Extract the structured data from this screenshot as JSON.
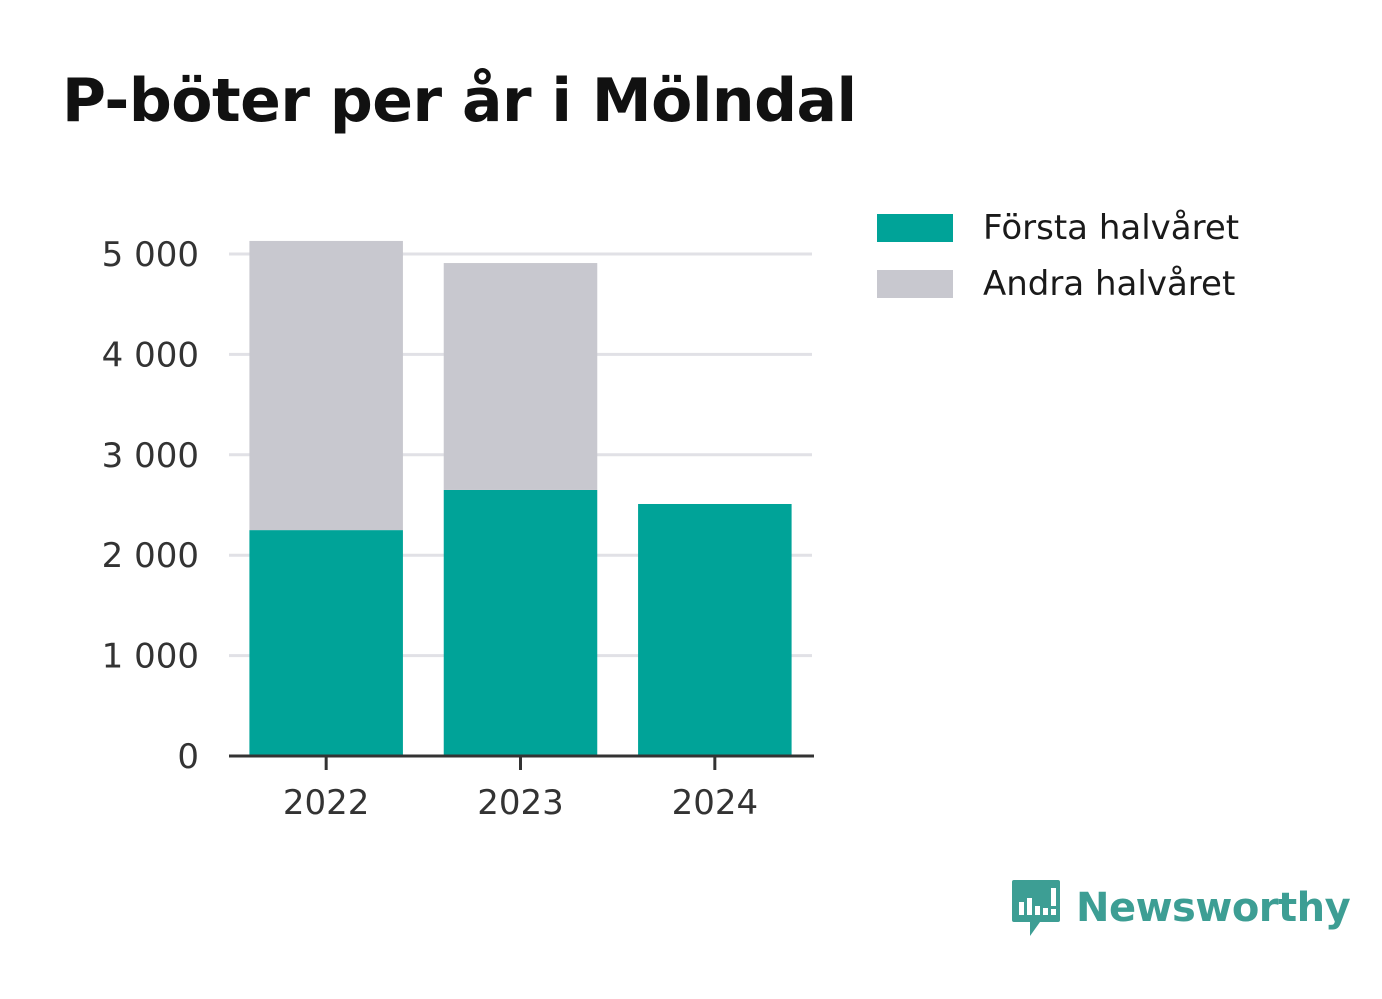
{
  "title": "P-böter per år i Mölndal",
  "colors": {
    "first_half": "#00a398",
    "second_half": "#c8c8cf",
    "grid": "#e1e1e6",
    "axis": "#333333",
    "brand": "#3d9e94"
  },
  "legend": [
    {
      "name": "Första halvåret",
      "color": "#00a398"
    },
    {
      "name": "Andra halvåret",
      "color": "#c8c8cf"
    }
  ],
  "brand": {
    "name": "Newsworthy",
    "icon": "newsworthy-logo-icon"
  },
  "chart_data": {
    "type": "bar",
    "stacked": true,
    "title": "P-böter per år i Mölndal",
    "xlabel": "",
    "ylabel": "",
    "categories": [
      "2022",
      "2023",
      "2024"
    ],
    "series": [
      {
        "name": "Första halvåret",
        "values": [
          2250,
          2650,
          2510
        ],
        "color": "#00a398"
      },
      {
        "name": "Andra halvåret",
        "values": [
          2880,
          2260,
          0
        ],
        "color": "#c8c8cf"
      }
    ],
    "ylim": [
      0,
      5000
    ],
    "yticks": [
      0,
      1000,
      2000,
      3000,
      4000,
      5000
    ],
    "ytick_labels": [
      "0",
      "1 000",
      "2 000",
      "3 000",
      "4 000",
      "5 000"
    ],
    "grid": true,
    "legend_position": "top-right"
  }
}
